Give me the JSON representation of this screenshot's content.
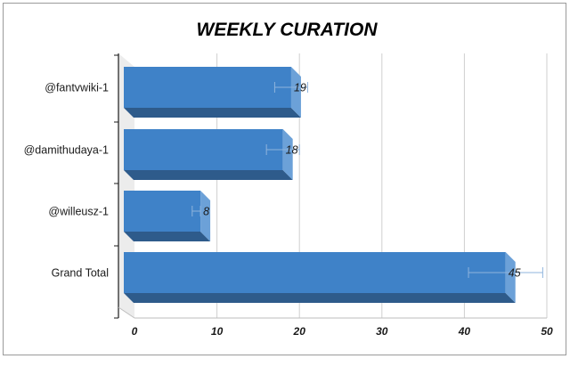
{
  "chart_data": {
    "type": "bar",
    "orientation": "horizontal",
    "title": "WEEKLY CURATION",
    "categories": [
      "@fantvwiki-1",
      "@damithudaya-1",
      "@willeusz-1",
      "Grand Total"
    ],
    "values": [
      19,
      18,
      8,
      45
    ],
    "error_ranges": [
      [
        17,
        21
      ],
      [
        16,
        20
      ],
      [
        7,
        8
      ],
      [
        40.5,
        49.5
      ]
    ],
    "value_labels": [
      "19",
      "18",
      "8",
      "45"
    ],
    "xlabel": "",
    "ylabel": "",
    "xlim": [
      0,
      50
    ],
    "x_ticks": [
      0,
      10,
      20,
      30,
      40,
      50
    ],
    "grid": true,
    "legend": "none",
    "colors": {
      "bar_front": "#3f82c8",
      "bar_side": "#6ca1d8",
      "bar_bottom": "#2e5b8b",
      "error_bar": "#8fb4dd",
      "grid": "#cfcfcf"
    }
  }
}
